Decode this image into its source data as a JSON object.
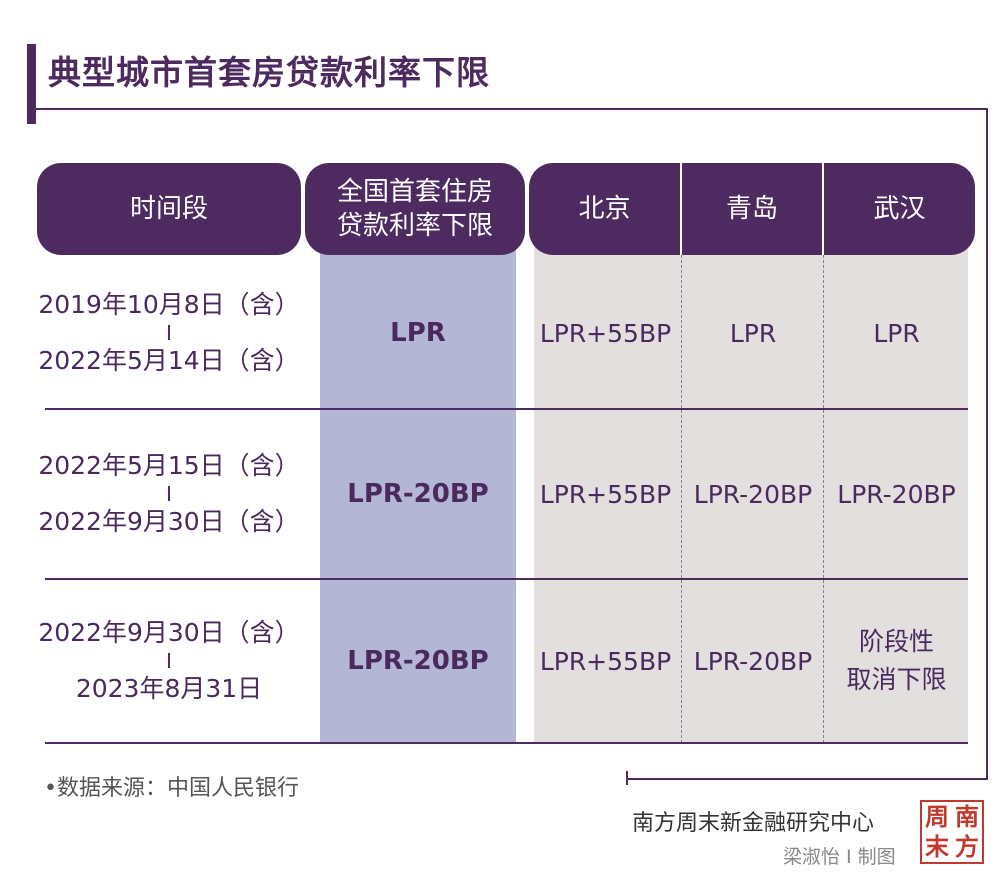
{
  "title": "典型城市首套房贷款利率下限",
  "headers": {
    "period": "时间段",
    "national_line1": "全国首套住房",
    "national_line2": "贷款利率下限",
    "cities": [
      "北京",
      "青岛",
      "武汉"
    ]
  },
  "chart_data": {
    "type": "table",
    "title": "典型城市首套房贷款利率下限",
    "columns": [
      "时间段",
      "全国首套住房贷款利率下限",
      "北京",
      "青岛",
      "武汉"
    ],
    "rows": [
      {
        "period_start": "2019年10月8日（含）",
        "separator": "I",
        "period_end": "2022年5月14日（含）",
        "national": "LPR",
        "cities": [
          "LPR+55BP",
          "LPR",
          "LPR"
        ]
      },
      {
        "period_start": "2022年5月15日（含）",
        "separator": "I",
        "period_end": "2022年9月30日（含）",
        "national": "LPR-20BP",
        "cities": [
          "LPR+55BP",
          "LPR-20BP",
          "LPR-20BP"
        ]
      },
      {
        "period_start": "2022年9月30日（含）",
        "separator": "I",
        "period_end": "2023年8月31日",
        "national": "LPR-20BP",
        "cities": [
          "LPR+55BP",
          "LPR-20BP",
          "阶段性\n取消下限"
        ]
      }
    ]
  },
  "wuhan_row3_line1": "阶段性",
  "wuhan_row3_line2": "取消下限",
  "footer": {
    "source": "•数据来源：中国人民银行",
    "publisher": "南方周末新金融研究中心",
    "author": "梁淑怡 I 制图",
    "seal_chars": [
      "周",
      "南",
      "末",
      "方"
    ]
  },
  "colors": {
    "header": "#4d2a5f",
    "national_column": "#b4b6d6",
    "city_columns": "#e3dfdf",
    "seal": "#c0392b"
  }
}
